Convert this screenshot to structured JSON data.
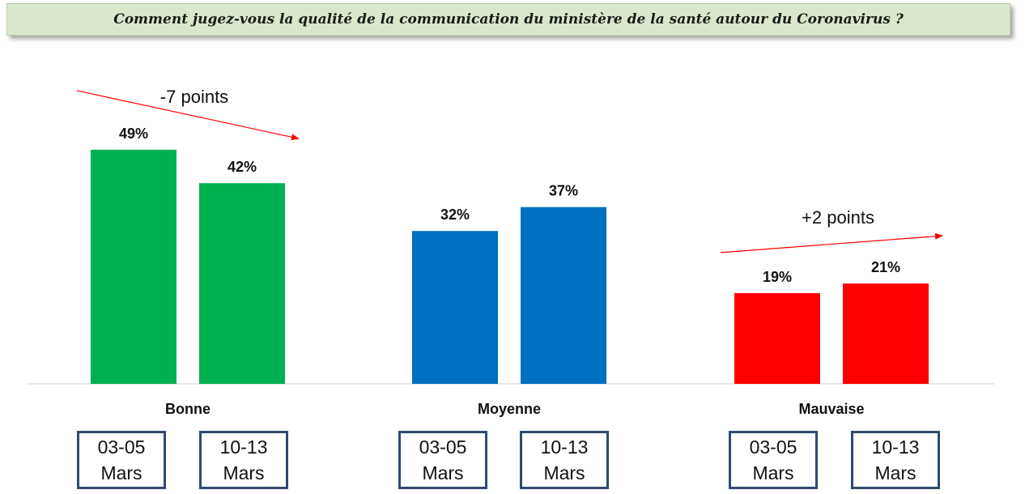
{
  "title": "Comment jugez-vous la qualité de la communication du ministère de la santé autour du Coronavirus ?",
  "chart_data": {
    "type": "bar",
    "categories": [
      "Bonne",
      "Moyenne",
      "Mauvaise"
    ],
    "series": [
      {
        "period_line1": "03-05",
        "period_line2": "Mars",
        "values": [
          49,
          32,
          19
        ]
      },
      {
        "period_line1": "10-13",
        "period_line2": "Mars",
        "values": [
          42,
          37,
          21
        ]
      }
    ],
    "category_colors": [
      "#00b050",
      "#0070c0",
      "#ff0000"
    ],
    "value_suffix": "%",
    "annotations": [
      {
        "category": "Bonne",
        "text": "-7 points",
        "direction": "down"
      },
      {
        "category": "Mauvaise",
        "text": "+2 points",
        "direction": "up"
      }
    ],
    "annotation_color": "#ff0000",
    "grid": false
  }
}
